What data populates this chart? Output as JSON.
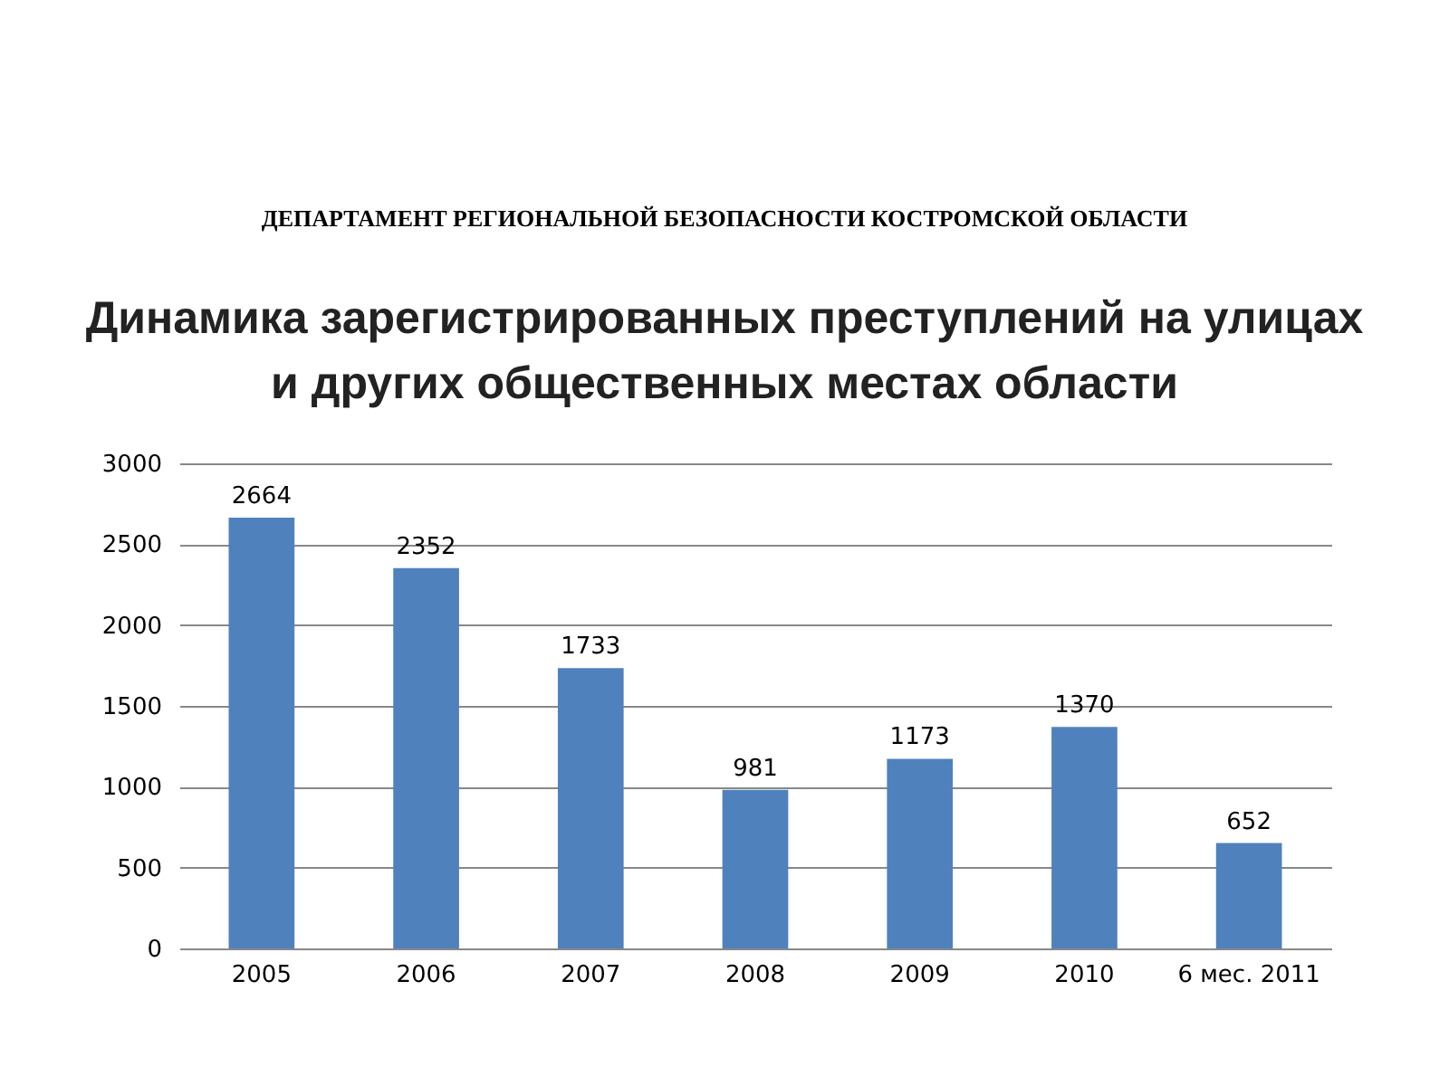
{
  "chart_data": {
    "type": "bar",
    "subtitle": "ДЕПАРТАМЕНТ РЕГИОНАЛЬНОЙ БЕЗОПАСНОСТИ КОСТРОМСКОЙ ОБЛАСТИ",
    "title": "Динамика зарегистрированных преступлений на улицах и других общественных местах области",
    "categories": [
      "2005",
      "2006",
      "2007",
      "2008",
      "2009",
      "2010",
      "6 мес. 2011"
    ],
    "values": [
      2664,
      2352,
      1733,
      981,
      1173,
      1370,
      652
    ],
    "color": "#4f81bd",
    "ylim": [
      0,
      3000
    ],
    "yticks": [
      0,
      500,
      1000,
      1500,
      2000,
      2500,
      3000
    ],
    "grid": "y",
    "data_labels": true
  }
}
